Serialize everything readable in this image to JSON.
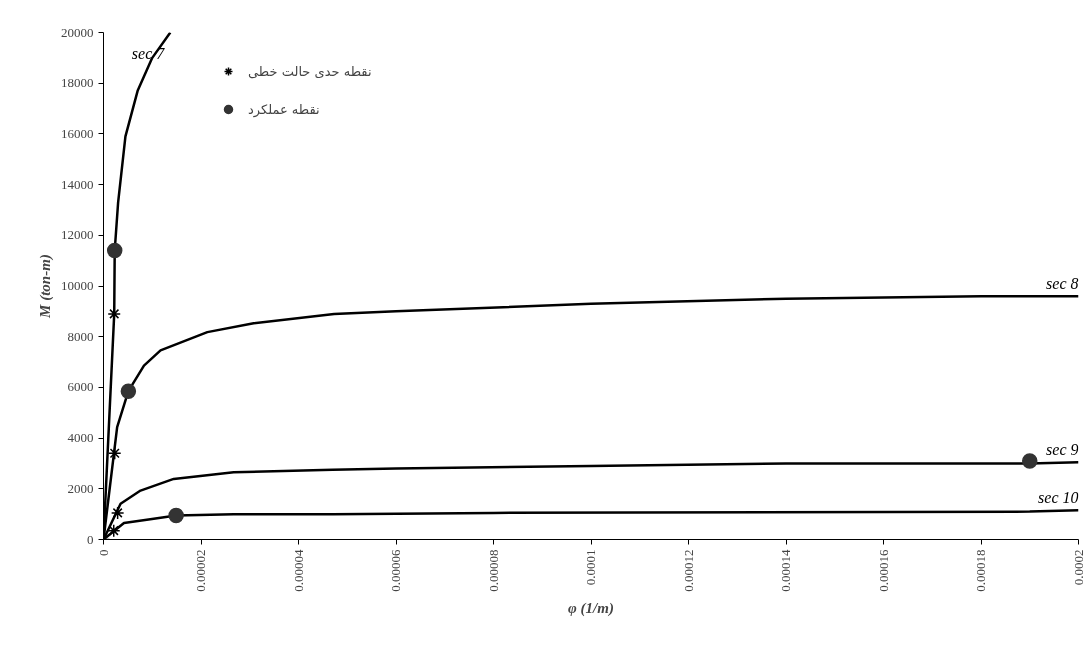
{
  "chart_data": {
    "type": "line",
    "xlabel": "φ (1/m)",
    "ylabel": "M (ton-m)",
    "xlim": [
      0,
      0.0002
    ],
    "ylim": [
      0,
      20000
    ],
    "xticks": [
      0,
      {
        "value": 2e-05,
        "label": "0.00002"
      },
      {
        "value": 4e-05,
        "label": "0.00004"
      },
      {
        "value": 6e-05,
        "label": "0.00006"
      },
      {
        "value": 8e-05,
        "label": "0.00008"
      },
      0.0001,
      0.00012,
      0.00014,
      0.00016,
      0.00018,
      0.0002
    ],
    "yticks": [
      0,
      2000,
      4000,
      6000,
      8000,
      10000,
      12000,
      14000,
      16000,
      18000,
      20000
    ],
    "grid": false,
    "legend": "top left",
    "marker": "none",
    "line_style": "solid",
    "series": [
      {
        "name": "sec 7",
        "color": "#000000",
        "x": [
          0,
          2.2e-06,
          2.3e-06,
          3e-06,
          4.5e-06,
          7e-06,
          1e-05,
          1.37e-05
        ],
        "values": [
          0,
          8900,
          11400,
          13300,
          15900,
          17700,
          19000,
          20000
        ]
      },
      {
        "name": "sec 8",
        "color": "#000000",
        "x": [
          0,
          2.8e-06,
          5.1e-06,
          8.3e-06,
          1.17e-05,
          2.13e-05,
          3.08e-05,
          4.73e-05,
          6e-05,
          0.0001,
          0.00014,
          0.00018,
          0.0002
        ],
        "values": [
          0,
          4430,
          5850,
          6860,
          7460,
          8180,
          8530,
          8900,
          9000,
          9300,
          9500,
          9600,
          9600
        ]
      },
      {
        "name": "sec 9",
        "color": "#000000",
        "x": [
          0,
          3.5e-06,
          7.6e-06,
          1.44e-05,
          2.67e-05,
          4.7e-05,
          6e-05,
          0.0001,
          0.00014,
          0.00019,
          0.0002
        ],
        "values": [
          0,
          1410,
          1930,
          2390,
          2650,
          2750,
          2800,
          2900,
          3000,
          3000,
          3050
        ]
      },
      {
        "name": "sec 10",
        "color": "#000000",
        "x": [
          0,
          4.2e-06,
          9.6e-06,
          1.49e-05,
          2.67e-05,
          4.7e-05,
          8e-05,
          0.00019,
          0.0002
        ],
        "values": [
          0,
          650,
          800,
          950,
          1000,
          1000,
          1050,
          1100,
          1150
        ]
      },
      {
        "name": "نقطه حدی حالت خطی",
        "type": "scatter",
        "marker": "cross",
        "color": "#000000",
        "x": [
          0,
          2.2e-06,
          2.3e-06,
          2.9e-06,
          2.1e-06
        ],
        "values": [
          0,
          8900,
          3400,
          1050,
          350
        ]
      },
      {
        "name": "نقطه عملکرد",
        "type": "scatter",
        "marker": "circle",
        "color": "#333333",
        "x": [
          2.3e-06,
          5.1e-06,
          1.49e-05,
          0.00019
        ],
        "values": [
          11400,
          5850,
          950,
          3100
        ]
      }
    ]
  }
}
